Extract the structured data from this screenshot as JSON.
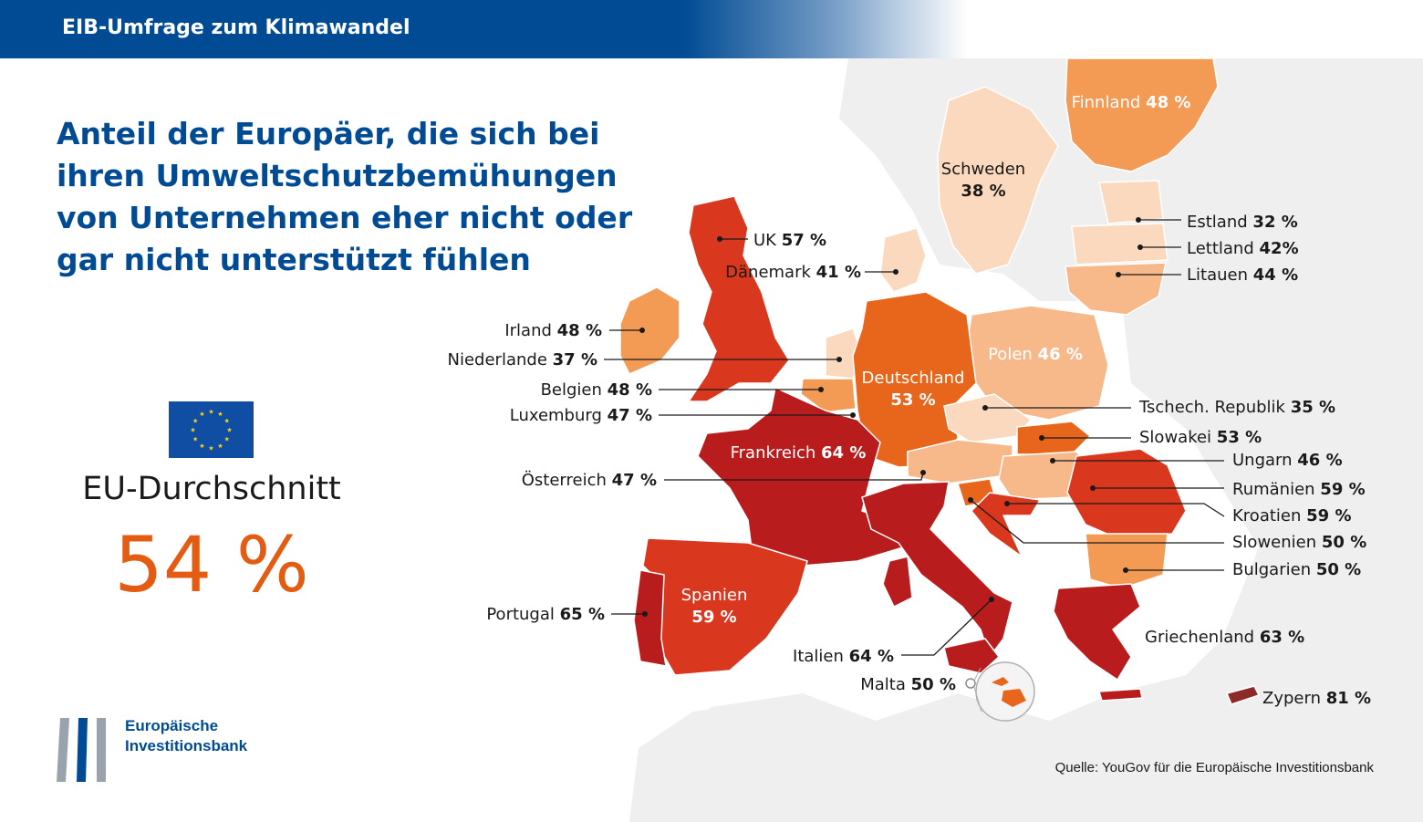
{
  "header": {
    "title": "EIB-Umfrage zum Klimawandel"
  },
  "headline": "Anteil der Europäer, die sich bei ihren Umweltschutzbemühungen von Unternehmen eher nicht oder gar nicht unterstützt fühlen",
  "average": {
    "label": "EU-Durchschnitt",
    "value": "54 %"
  },
  "logo": {
    "line1": "Europäische",
    "line2": "Investitionsbank"
  },
  "source": "Quelle: YouGov für die Europäische Investitionsbank",
  "colors": {
    "brand_blue": "#004b93",
    "accent_orange": "#e45b12",
    "scale": [
      "#fbd9bf",
      "#f7b88a",
      "#f39a55",
      "#e8661c",
      "#d9381e",
      "#b81c1c",
      "#8e2a2a"
    ]
  },
  "countries": [
    {
      "id": "finnland",
      "name": "Finnland",
      "value": "48 %"
    },
    {
      "id": "schweden",
      "name": "Schweden",
      "value": "38 %"
    },
    {
      "id": "estland",
      "name": "Estland",
      "value": "32 %"
    },
    {
      "id": "lettland",
      "name": "Lettland",
      "value": "42%"
    },
    {
      "id": "litauen",
      "name": "Litauen",
      "value": "44 %"
    },
    {
      "id": "uk",
      "name": "UK",
      "value": "57 %"
    },
    {
      "id": "daenemark",
      "name": "Dänemark",
      "value": "41 %"
    },
    {
      "id": "irland",
      "name": "Irland",
      "value": "48 %"
    },
    {
      "id": "niederlande",
      "name": "Niederlande",
      "value": "37 %"
    },
    {
      "id": "polen",
      "name": "Polen",
      "value": "46 %"
    },
    {
      "id": "deutschland",
      "name": "Deutschland",
      "value": "53 %"
    },
    {
      "id": "belgien",
      "name": "Belgien",
      "value": "48 %"
    },
    {
      "id": "luxemburg",
      "name": "Luxemburg",
      "value": "47 %"
    },
    {
      "id": "tschechien",
      "name": "Tschech. Republik",
      "value": "35 %"
    },
    {
      "id": "slowakei",
      "name": "Slowakei",
      "value": "53 %"
    },
    {
      "id": "frankreich",
      "name": "Frankreich",
      "value": "64 %"
    },
    {
      "id": "ungarn",
      "name": "Ungarn",
      "value": "46 %"
    },
    {
      "id": "oesterreich",
      "name": "Österreich",
      "value": "47 %"
    },
    {
      "id": "rumaenien",
      "name": "Rumänien",
      "value": "59 %"
    },
    {
      "id": "kroatien",
      "name": "Kroatien",
      "value": "59 %"
    },
    {
      "id": "slowenien",
      "name": "Slowenien",
      "value": "50 %"
    },
    {
      "id": "bulgarien",
      "name": "Bulgarien",
      "value": "50 %"
    },
    {
      "id": "spanien",
      "name": "Spanien",
      "value": "59 %"
    },
    {
      "id": "portugal",
      "name": "Portugal",
      "value": "65 %"
    },
    {
      "id": "griechenland",
      "name": "Griechenland",
      "value": "63 %"
    },
    {
      "id": "italien",
      "name": "Italien",
      "value": "64 %"
    },
    {
      "id": "malta",
      "name": "Malta",
      "value": "50 %"
    },
    {
      "id": "zypern",
      "name": "Zypern",
      "value": "81 %"
    }
  ]
}
